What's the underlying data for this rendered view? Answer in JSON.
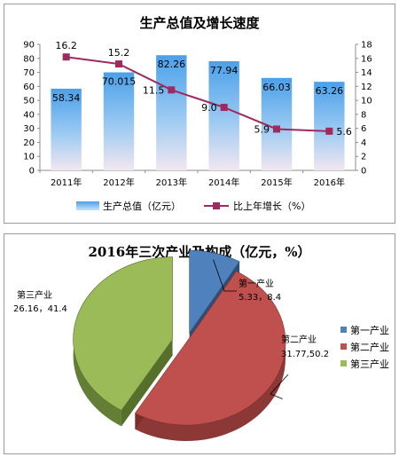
{
  "chart_data": [
    {
      "type": "bar",
      "title": "生产总值及增长速度",
      "categories": [
        "2011年",
        "2012年",
        "2013年",
        "2014年",
        "2015年",
        "2016年"
      ],
      "series": [
        {
          "name": "生产总值（亿元）",
          "type": "bar",
          "axis": "left",
          "values": [
            58.34,
            70.015,
            82.26,
            77.94,
            66.03,
            63.26
          ],
          "labels": [
            "58.34",
            "70.015",
            "82.26",
            "77.94",
            "66.03",
            "63.26"
          ],
          "color": "#5aa8ea"
        },
        {
          "name": "比上年增长（%）",
          "type": "line",
          "axis": "right",
          "values": [
            16.2,
            15.2,
            11.5,
            9.0,
            5.9,
            5.6
          ],
          "labels": [
            "16.2",
            "15.2",
            "11.5",
            "9.0",
            "5.9",
            "5.6"
          ],
          "color": "#9e2a5e"
        }
      ],
      "ylim": [
        0,
        90
      ],
      "yticks": [
        "0",
        "10",
        "20",
        "30",
        "40",
        "50",
        "60",
        "70",
        "80",
        "90"
      ],
      "y2lim": [
        0,
        18
      ],
      "y2ticks": [
        "0",
        "2",
        "4",
        "6",
        "8",
        "10",
        "12",
        "14",
        "16",
        "18"
      ],
      "grid": false,
      "legend": "bottom"
    },
    {
      "type": "pie",
      "title": "2016年三次产业及构成（亿元，%）",
      "categories": [
        "第一产业",
        "第二产业",
        "第三产业"
      ],
      "values": [
        8.4,
        50.2,
        41.4
      ],
      "labels": [
        "5.33，8.4",
        "31.77,50.2",
        "26.16，41.4"
      ],
      "colors": [
        "#4f81bd",
        "#c0504d",
        "#9bbb59"
      ],
      "legend": "right"
    }
  ]
}
